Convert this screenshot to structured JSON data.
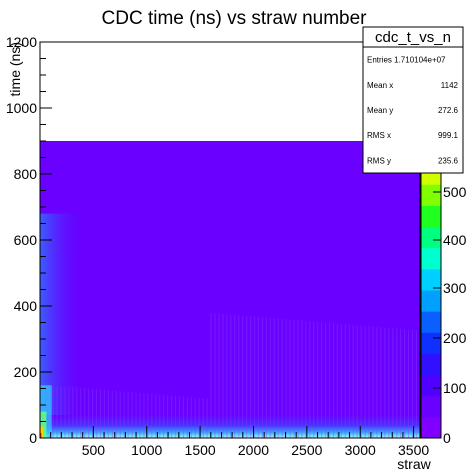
{
  "chart_data": {
    "type": "heatmap",
    "title": "CDC time (ns) vs straw number",
    "xlabel": "straw",
    "ylabel": "time (ns)",
    "xlim": [
      0,
      3560
    ],
    "ylim": [
      0,
      1200
    ],
    "x_ticks": [
      "500",
      "1000",
      "1500",
      "2000",
      "2500",
      "3000",
      "3500"
    ],
    "y_ticks": [
      "0",
      "200",
      "400",
      "600",
      "800",
      "1000",
      "1200"
    ],
    "filled_time_range": [
      0,
      900
    ],
    "colorbar": {
      "tick_labels": [
        "0",
        "100",
        "200",
        "300",
        "400",
        "500"
      ],
      "colors": [
        "#8000ff",
        "#6a00ff",
        "#5000ff",
        "#3010ff",
        "#1030ff",
        "#0a60ff",
        "#00a0ff",
        "#00d0ff",
        "#00ffd0",
        "#00ff80",
        "#20ff20",
        "#80ff00",
        "#d0ff00",
        "#ffff00"
      ]
    },
    "stats_box": {
      "name": "cdc_t_vs_n",
      "rows": [
        {
          "label": "Entries",
          "value": "1.710104e+07"
        },
        {
          "label": "Mean x",
          "value": "1142"
        },
        {
          "label": "Mean y",
          "value": "272.6"
        },
        {
          "label": "RMS x",
          "value": "999.1"
        },
        {
          "label": "RMS y",
          "value": "235.6"
        }
      ]
    },
    "grid": false,
    "legend": "none"
  }
}
